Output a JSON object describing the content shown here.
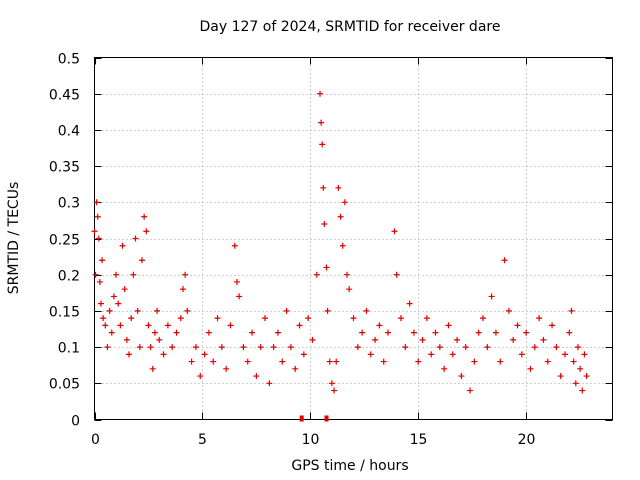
{
  "chart_data": {
    "type": "scatter",
    "title": "Day 127 of 2024, SRMTID for receiver dare",
    "xlabel": "GPS time / hours",
    "ylabel": "SRMTID / TECUs",
    "xlim": [
      0,
      24
    ],
    "ylim": [
      0,
      0.5
    ],
    "xticks": [
      0,
      5,
      10,
      15,
      20
    ],
    "xtick_labels": [
      "0",
      "5",
      "10",
      "15",
      "20"
    ],
    "yticks": [
      0,
      0.05,
      0.1,
      0.15,
      0.2,
      0.25,
      0.3,
      0.35,
      0.4,
      0.45,
      0.5
    ],
    "ytick_labels": [
      "0",
      "0.05",
      "0.1",
      "0.15",
      "0.2",
      "0.25",
      "0.3",
      "0.35",
      "0.4",
      "0.45",
      "0.5"
    ],
    "grid": true,
    "marker": "+",
    "series": [
      {
        "name": "SRMTID",
        "color": "#e00000",
        "points": [
          [
            0.0,
            0.26
          ],
          [
            0.05,
            0.2
          ],
          [
            0.1,
            0.3
          ],
          [
            0.15,
            0.28
          ],
          [
            0.2,
            0.25
          ],
          [
            0.25,
            0.19
          ],
          [
            0.3,
            0.16
          ],
          [
            0.35,
            0.22
          ],
          [
            0.4,
            0.14
          ],
          [
            0.5,
            0.13
          ],
          [
            0.6,
            0.1
          ],
          [
            0.7,
            0.15
          ],
          [
            0.8,
            0.12
          ],
          [
            0.9,
            0.17
          ],
          [
            1.0,
            0.2
          ],
          [
            1.1,
            0.16
          ],
          [
            1.2,
            0.13
          ],
          [
            1.3,
            0.24
          ],
          [
            1.4,
            0.18
          ],
          [
            1.5,
            0.11
          ],
          [
            1.6,
            0.09
          ],
          [
            1.7,
            0.14
          ],
          [
            1.8,
            0.2
          ],
          [
            1.9,
            0.25
          ],
          [
            2.0,
            0.15
          ],
          [
            2.1,
            0.1
          ],
          [
            2.2,
            0.22
          ],
          [
            2.3,
            0.28
          ],
          [
            2.4,
            0.26
          ],
          [
            2.5,
            0.13
          ],
          [
            2.6,
            0.1
          ],
          [
            2.7,
            0.07
          ],
          [
            2.8,
            0.12
          ],
          [
            2.9,
            0.15
          ],
          [
            3.0,
            0.11
          ],
          [
            3.2,
            0.09
          ],
          [
            3.4,
            0.13
          ],
          [
            3.6,
            0.1
          ],
          [
            3.8,
            0.12
          ],
          [
            4.0,
            0.14
          ],
          [
            4.1,
            0.18
          ],
          [
            4.2,
            0.2
          ],
          [
            4.3,
            0.15
          ],
          [
            4.5,
            0.08
          ],
          [
            4.7,
            0.1
          ],
          [
            4.9,
            0.06
          ],
          [
            5.1,
            0.09
          ],
          [
            5.3,
            0.12
          ],
          [
            5.5,
            0.08
          ],
          [
            5.7,
            0.14
          ],
          [
            5.9,
            0.1
          ],
          [
            6.1,
            0.07
          ],
          [
            6.3,
            0.13
          ],
          [
            6.5,
            0.24
          ],
          [
            6.6,
            0.19
          ],
          [
            6.7,
            0.17
          ],
          [
            6.9,
            0.1
          ],
          [
            7.1,
            0.08
          ],
          [
            7.3,
            0.12
          ],
          [
            7.5,
            0.06
          ],
          [
            7.7,
            0.1
          ],
          [
            7.9,
            0.14
          ],
          [
            8.1,
            0.05
          ],
          [
            8.3,
            0.1
          ],
          [
            8.5,
            0.12
          ],
          [
            8.7,
            0.08
          ],
          [
            8.9,
            0.15
          ],
          [
            9.1,
            0.1
          ],
          [
            9.3,
            0.07
          ],
          [
            9.5,
            0.13
          ],
          [
            9.7,
            0.09
          ],
          [
            9.9,
            0.14
          ],
          [
            10.1,
            0.11
          ],
          [
            10.3,
            0.2
          ],
          [
            10.45,
            0.45
          ],
          [
            10.5,
            0.41
          ],
          [
            10.55,
            0.38
          ],
          [
            10.6,
            0.32
          ],
          [
            10.65,
            0.27
          ],
          [
            10.75,
            0.21
          ],
          [
            10.8,
            0.15
          ],
          [
            10.9,
            0.08
          ],
          [
            11.0,
            0.05
          ],
          [
            11.1,
            0.04
          ],
          [
            11.2,
            0.08
          ],
          [
            11.3,
            0.32
          ],
          [
            11.4,
            0.28
          ],
          [
            11.5,
            0.24
          ],
          [
            11.6,
            0.3
          ],
          [
            11.7,
            0.2
          ],
          [
            11.8,
            0.18
          ],
          [
            12.0,
            0.14
          ],
          [
            12.2,
            0.1
          ],
          [
            12.4,
            0.12
          ],
          [
            12.6,
            0.15
          ],
          [
            12.8,
            0.09
          ],
          [
            13.0,
            0.11
          ],
          [
            13.2,
            0.13
          ],
          [
            13.4,
            0.08
          ],
          [
            13.6,
            0.12
          ],
          [
            13.9,
            0.26
          ],
          [
            14.0,
            0.2
          ],
          [
            14.2,
            0.14
          ],
          [
            14.4,
            0.1
          ],
          [
            14.6,
            0.16
          ],
          [
            14.8,
            0.12
          ],
          [
            15.0,
            0.08
          ],
          [
            15.2,
            0.11
          ],
          [
            15.4,
            0.14
          ],
          [
            15.6,
            0.09
          ],
          [
            15.8,
            0.12
          ],
          [
            16.0,
            0.1
          ],
          [
            16.2,
            0.07
          ],
          [
            16.4,
            0.13
          ],
          [
            16.6,
            0.09
          ],
          [
            16.8,
            0.11
          ],
          [
            17.0,
            0.06
          ],
          [
            17.2,
            0.1
          ],
          [
            17.4,
            0.04
          ],
          [
            17.6,
            0.08
          ],
          [
            17.8,
            0.12
          ],
          [
            18.0,
            0.14
          ],
          [
            18.2,
            0.1
          ],
          [
            18.4,
            0.17
          ],
          [
            18.6,
            0.12
          ],
          [
            18.8,
            0.08
          ],
          [
            19.0,
            0.22
          ],
          [
            19.2,
            0.15
          ],
          [
            19.4,
            0.11
          ],
          [
            19.6,
            0.13
          ],
          [
            19.8,
            0.09
          ],
          [
            20.0,
            0.12
          ],
          [
            20.2,
            0.07
          ],
          [
            20.4,
            0.1
          ],
          [
            20.6,
            0.14
          ],
          [
            20.8,
            0.11
          ],
          [
            21.0,
            0.08
          ],
          [
            21.2,
            0.13
          ],
          [
            21.4,
            0.1
          ],
          [
            21.6,
            0.06
          ],
          [
            21.8,
            0.09
          ],
          [
            22.0,
            0.12
          ],
          [
            22.1,
            0.15
          ],
          [
            22.2,
            0.08
          ],
          [
            22.3,
            0.05
          ],
          [
            22.4,
            0.1
          ],
          [
            22.5,
            0.07
          ],
          [
            22.6,
            0.04
          ],
          [
            22.7,
            0.09
          ],
          [
            22.8,
            0.06
          ]
        ]
      }
    ],
    "gap_markers": [
      9.6,
      10.75
    ]
  }
}
